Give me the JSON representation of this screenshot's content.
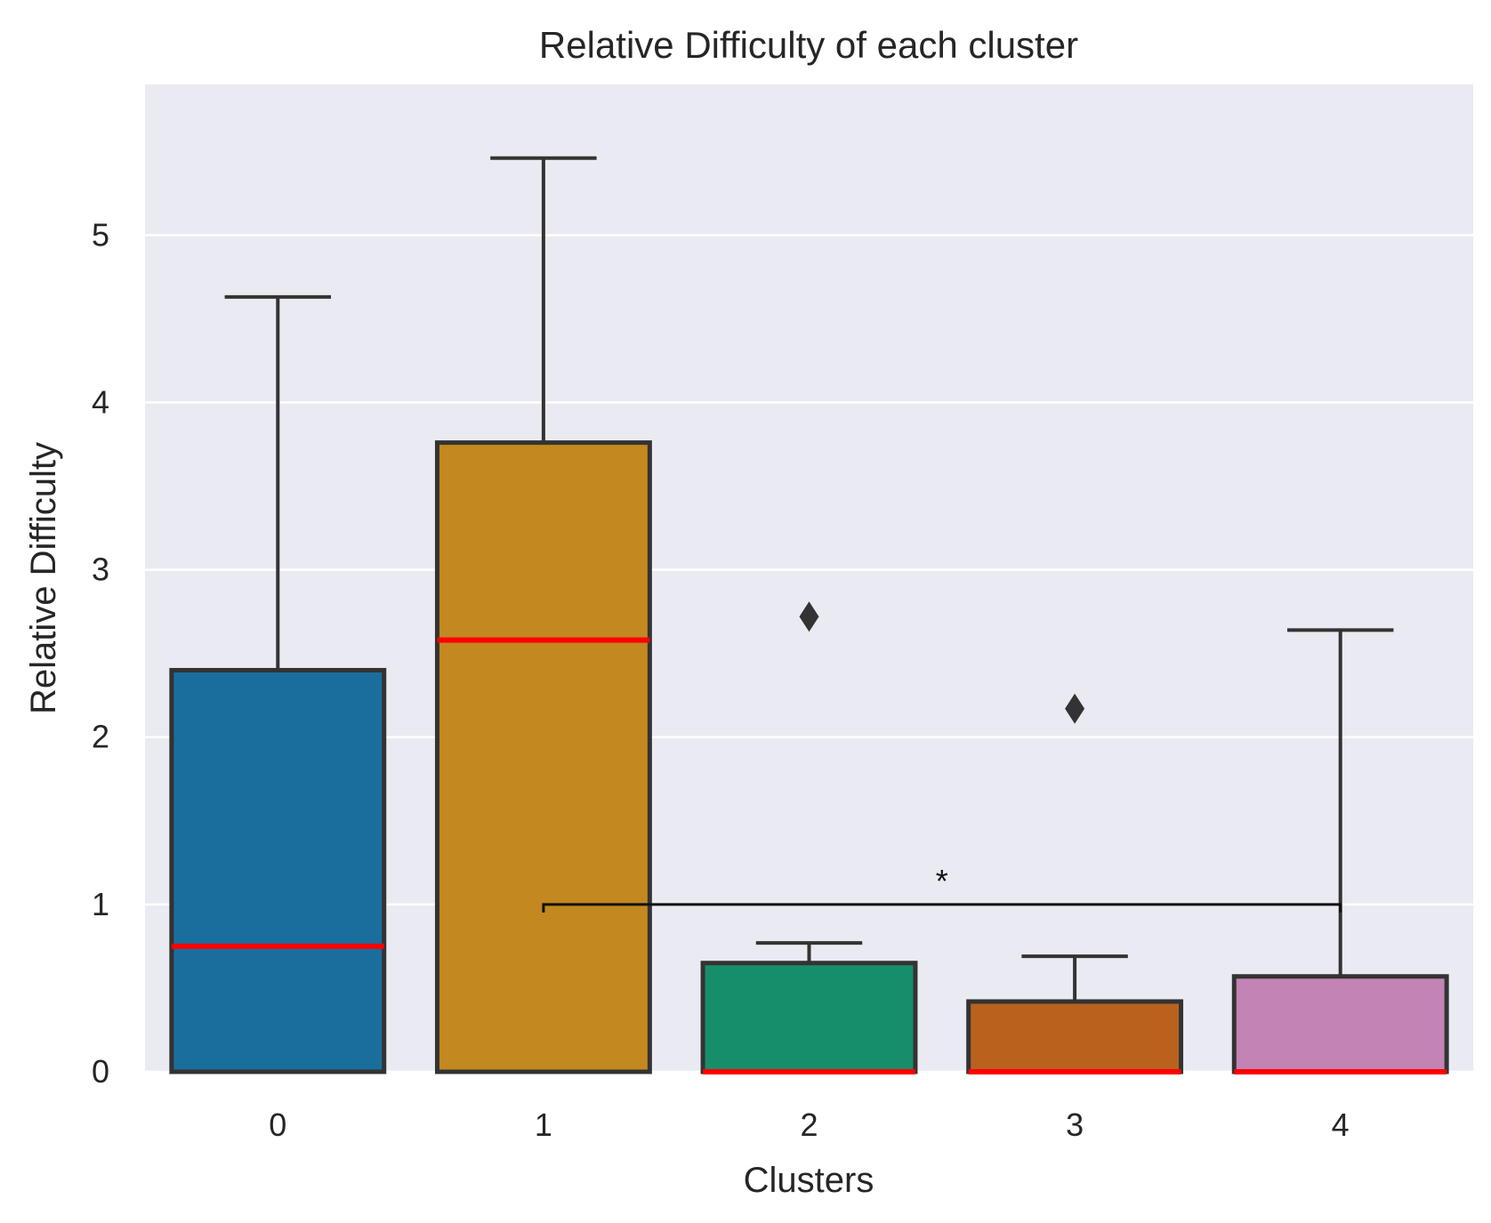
{
  "chart_data": {
    "type": "box",
    "title": "Relative Difficulty of each cluster",
    "xlabel": "Clusters",
    "ylabel": "Relative Difficulty",
    "ylim": [
      0,
      5.9
    ],
    "yticks": [
      "0",
      "1",
      "2",
      "3",
      "4",
      "5"
    ],
    "grid": true,
    "categories": [
      "0",
      "1",
      "2",
      "3",
      "4"
    ],
    "boxes": [
      {
        "category": "0",
        "q1": 0,
        "median": 0.75,
        "q3": 2.4,
        "whisker_low": 0,
        "whisker_high": 4.63,
        "outliers": [],
        "color": "#1a6e9e"
      },
      {
        "category": "1",
        "q1": 0,
        "median": 2.58,
        "q3": 3.76,
        "whisker_low": 0,
        "whisker_high": 5.46,
        "outliers": [],
        "color": "#c38820"
      },
      {
        "category": "2",
        "q1": 0,
        "median": 0,
        "q3": 0.65,
        "whisker_low": 0,
        "whisker_high": 0.77,
        "outliers": [
          2.72
        ],
        "color": "#178e6b"
      },
      {
        "category": "3",
        "q1": 0,
        "median": 0,
        "q3": 0.42,
        "whisker_low": 0,
        "whisker_high": 0.69,
        "outliers": [
          2.17
        ],
        "color": "#b8621e"
      },
      {
        "category": "4",
        "q1": 0,
        "median": 0,
        "q3": 0.57,
        "whisker_low": 0,
        "whisker_high": 2.64,
        "outliers": [],
        "color": "#c383b5"
      }
    ],
    "median_color": "#ff0000",
    "significance": {
      "from": "1",
      "to": "4",
      "y": 1.0,
      "label": "*"
    }
  }
}
